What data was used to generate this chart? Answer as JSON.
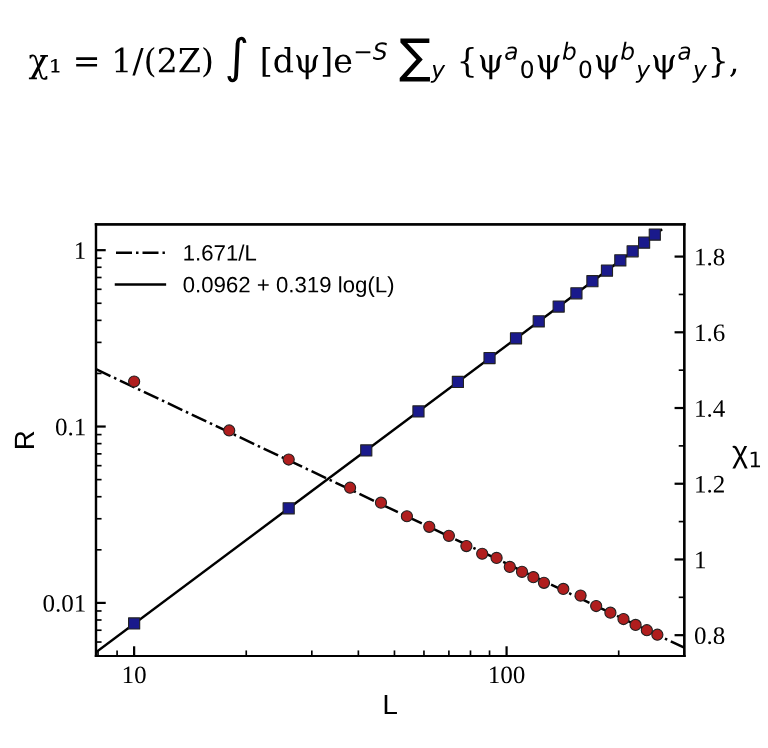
{
  "chart_data": {
    "type": "scatter",
    "annotations": [
      "χ₁ = 1/(2Z) ∫ [dψ]e$^{−S}$ ∑$_{y}$ {ψ$^{a}$$_{0}$ψ$^{b}$$_{0}$ψ$^{b}$$_{y}$ψ$^{a}$$_{y}$},"
    ],
    "xlabel": "L",
    "ylabel": "R",
    "y2label": "χ$_{1}$",
    "log": "xy",
    "xlim": [
      7.9,
      300
    ],
    "xticks": [
      10,
      100
    ],
    "ylim": [
      0.005,
      1.4
    ],
    "yticks": [
      0.01,
      0.1,
      1
    ],
    "y2lim": [
      0.745,
      1.885
    ],
    "y2ticks": [
      0.8,
      1,
      1.2,
      1.4,
      1.6,
      1.8
    ],
    "legend": "top left",
    "series": [
      {
        "type": "line",
        "name": "1.671/L",
        "color": "#000000",
        "line_style": "dashdot",
        "marker": "none",
        "x": [
          7.9,
          300
        ],
        "values": [
          0.2115,
          0.00557
        ]
      },
      {
        "type": "line",
        "name": "0.0962 + 0.319 log(L)",
        "color": "#000000",
        "line_style": "solid",
        "marker": "none",
        "axis": "y2",
        "x": [
          7.9,
          260
        ],
        "values": [
          0.755,
          1.87
        ]
      },
      {
        "type": "scatter",
        "color": "#b01e1e",
        "marker": "circle",
        "x": [
          10,
          18,
          26,
          38,
          46,
          54,
          62,
          70,
          78,
          86,
          94,
          102,
          110,
          118,
          126,
          142,
          158,
          174,
          190,
          206,
          222,
          238,
          254
        ],
        "values": [
          0.18,
          0.095,
          0.065,
          0.045,
          0.037,
          0.031,
          0.027,
          0.024,
          0.021,
          0.019,
          0.018,
          0.016,
          0.015,
          0.014,
          0.013,
          0.012,
          0.011,
          0.0096,
          0.0088,
          0.0081,
          0.0075,
          0.007,
          0.0066
        ]
      },
      {
        "type": "scatter",
        "color": "#1a1a8c",
        "marker": "square",
        "axis": "y2",
        "x": [
          10,
          26,
          42,
          58,
          74,
          90,
          106,
          122,
          138,
          154,
          170,
          186,
          202,
          218,
          234,
          250
        ],
        "values": [
          0.831,
          1.135,
          1.288,
          1.391,
          1.469,
          1.532,
          1.584,
          1.629,
          1.668,
          1.703,
          1.735,
          1.763,
          1.79,
          1.814,
          1.837,
          1.858
        ]
      }
    ]
  }
}
